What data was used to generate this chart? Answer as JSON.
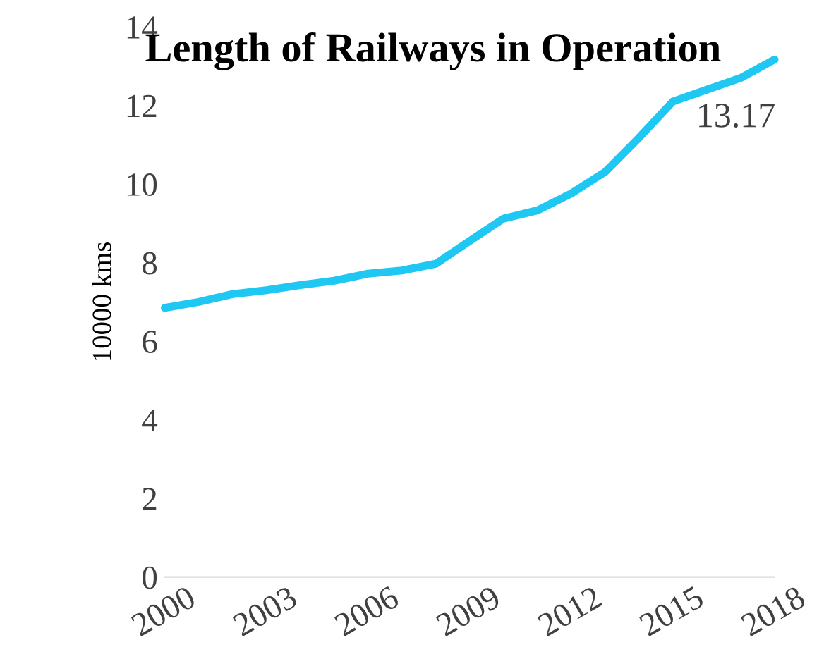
{
  "chart_data": {
    "type": "line",
    "title": "Length of Railways in Operation",
    "ylabel": "10000 kms",
    "x": [
      2000,
      2001,
      2002,
      2003,
      2004,
      2005,
      2006,
      2007,
      2008,
      2009,
      2010,
      2011,
      2012,
      2013,
      2014,
      2015,
      2016,
      2017,
      2018
    ],
    "series": [
      {
        "color": "#1ec8f2",
        "values": [
          6.85,
          7.0,
          7.2,
          7.3,
          7.43,
          7.54,
          7.72,
          7.8,
          7.97,
          8.55,
          9.12,
          9.33,
          9.76,
          10.31,
          11.18,
          12.1,
          12.4,
          12.7,
          13.17
        ]
      }
    ],
    "xlim": [
      2000,
      2018
    ],
    "xticks": [
      2000,
      2003,
      2006,
      2009,
      2012,
      2015,
      2018
    ],
    "ylim": [
      0,
      14
    ],
    "yticks": [
      0,
      2,
      4,
      6,
      8,
      10,
      12,
      14
    ],
    "annotations": [
      {
        "text": "13.17",
        "x": 2018,
        "y": 13.17
      }
    ],
    "grid": false,
    "legend": false,
    "marker": "none",
    "line_style": "solid"
  }
}
